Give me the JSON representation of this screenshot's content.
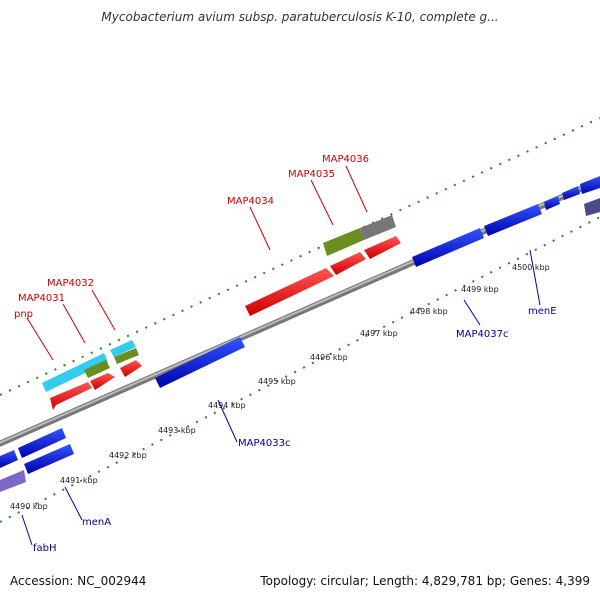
{
  "title": "Mycobacterium avium subsp. paratuberculosis K-10, complete g...",
  "footer": {
    "accession": "Accession: NC_002944",
    "summary": "Topology: circular; Length: 4,829,781 bp; Genes: 4,399"
  },
  "scale_labels": [
    "4490 kbp",
    "4491 kbp",
    "4492 kbp",
    "4493 kbp",
    "4494 kbp",
    "4495 kbp",
    "4496 kbp",
    "4497 kbp",
    "4498 kbp",
    "4499 kbp",
    "4500 kbp"
  ],
  "gene_labels": {
    "forward": [
      "pnp",
      "MAP4031",
      "MAP4032",
      "MAP4034",
      "MAP4035",
      "MAP4036"
    ],
    "reverse": [
      "MAP4033c",
      "MAP4037c",
      "menE",
      "menA",
      "fabH"
    ]
  },
  "colors": {
    "forward_gene": "#ff0000",
    "reverse_gene": "#0000ee",
    "cds_cyan": "#33ccee",
    "cds_olive": "#6b8e23",
    "cds_gray": "#777777",
    "tick": "#228822",
    "backbone": "#888888"
  }
}
